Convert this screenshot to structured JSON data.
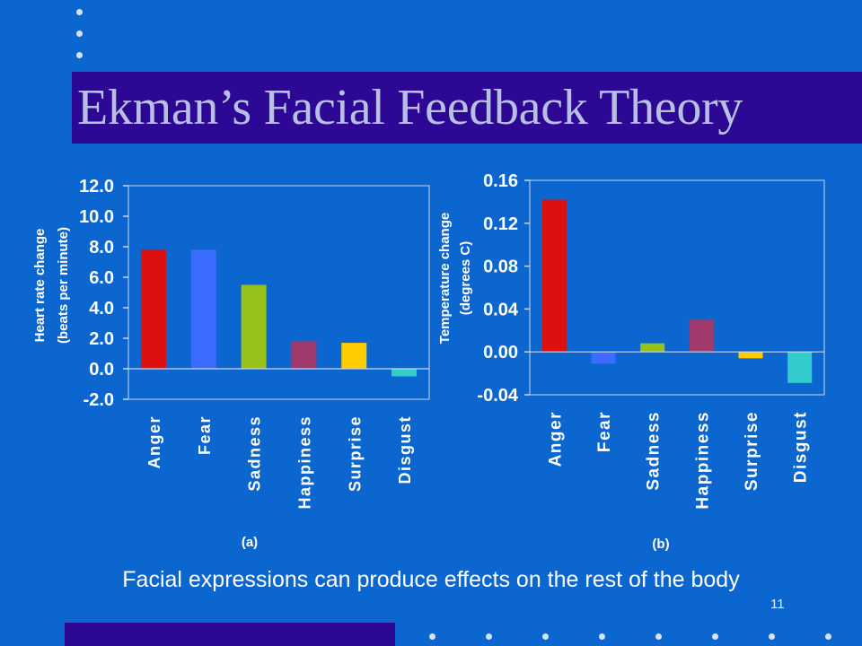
{
  "slide": {
    "title": "Ekman’s Facial Feedback Theory",
    "caption": "Facial expressions can produce effects on the rest of the body",
    "page_number": "11"
  },
  "colors": {
    "background": "#0c66cf",
    "title_bar": "#2d0894",
    "title_text": "#b9bfe3",
    "plot_area": "#0c66cf",
    "axis": "#c9d6ea",
    "text": "#ffffff"
  },
  "chart_data": [
    {
      "type": "bar",
      "panel_label": "(a)",
      "ylabel": "Heart rate change (beats per minute)",
      "ylabel_lines": [
        "Heart rate change",
        "(beats per minute)"
      ],
      "xlabel": "",
      "categories": [
        "Anger",
        "Fear",
        "Sadness",
        "Happiness",
        "Surprise",
        "Disgust"
      ],
      "values": [
        7.8,
        7.8,
        5.5,
        1.8,
        1.7,
        -0.5
      ],
      "bar_colors": [
        "#dd1010",
        "#3c6cff",
        "#96c21a",
        "#a03a6c",
        "#ffcc00",
        "#33cccc"
      ],
      "ylim": [
        -2.0,
        12.0
      ],
      "yticks": [
        12.0,
        10.0,
        8.0,
        6.0,
        4.0,
        2.0,
        0.0,
        -2.0
      ],
      "ytick_labels": [
        "12.0",
        "10.0",
        "8.0",
        "6.0",
        "4.0",
        "2.0",
        "0.0",
        "-2.0"
      ],
      "grid": false,
      "legend": "none"
    },
    {
      "type": "bar",
      "panel_label": "(b)",
      "ylabel": "Temperature change (degrees C)",
      "ylabel_lines": [
        "Temperature change",
        "(degrees C)"
      ],
      "xlabel": "",
      "categories": [
        "Anger",
        "Fear",
        "Sadness",
        "Happiness",
        "Surprise",
        "Disgust"
      ],
      "values": [
        0.142,
        -0.011,
        0.008,
        0.03,
        -0.006,
        -0.029
      ],
      "bar_colors": [
        "#dd1010",
        "#3c6cff",
        "#96c21a",
        "#a03a6c",
        "#ffcc00",
        "#33cccc"
      ],
      "ylim": [
        -0.04,
        0.16
      ],
      "yticks": [
        0.16,
        0.12,
        0.08,
        0.04,
        0.0,
        -0.04
      ],
      "ytick_labels": [
        "0.16",
        "0.12",
        "0.08",
        "0.04",
        "0.00",
        "-0.04"
      ],
      "grid": false,
      "legend": "none"
    }
  ]
}
